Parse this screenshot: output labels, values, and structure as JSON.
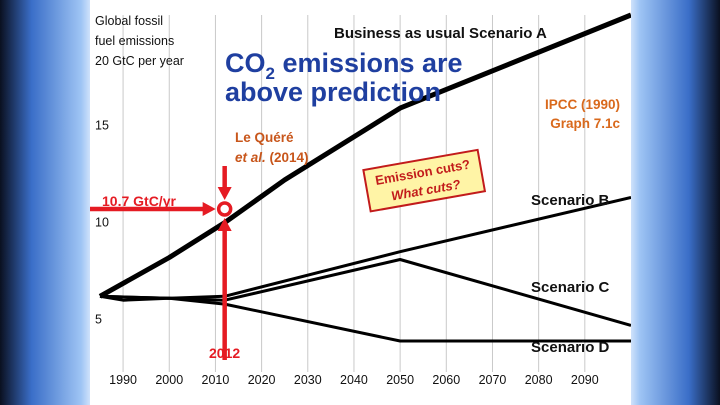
{
  "slide": {
    "headline_line1": "CO",
    "headline_sub": "2",
    "headline_line1_rest": " emissions are",
    "headline_line2": "above prediction",
    "headline_color": "#1f3fa0"
  },
  "chart_data": {
    "type": "line",
    "ylabel_lines": [
      "Global fossil",
      "fuel emissions",
      "20 GtC per year"
    ],
    "y_ticks": [
      5,
      10,
      15
    ],
    "x_ticks": [
      1990,
      2000,
      2010,
      2020,
      2030,
      2040,
      2050,
      2060,
      2070,
      2080,
      2090
    ],
    "xlim": [
      1985,
      2100
    ],
    "ylim": [
      2.3,
      20.7
    ],
    "series": [
      {
        "name": "Business as usual Scenario A",
        "x": [
          1985,
          2000,
          2012,
          2025,
          2050,
          2100
        ],
        "y": [
          6.2,
          8.2,
          10.0,
          12.2,
          15.9,
          20.7
        ]
      },
      {
        "name": "Scenario B",
        "x": [
          1985,
          2000,
          2012,
          2050,
          2100
        ],
        "y": [
          6.2,
          6.1,
          6.2,
          8.5,
          11.3
        ]
      },
      {
        "name": "Scenario C",
        "x": [
          1985,
          2000,
          2012,
          2050,
          2100
        ],
        "y": [
          6.2,
          6.1,
          6.0,
          8.1,
          4.7
        ]
      },
      {
        "name": "Scenario D",
        "x": [
          1985,
          1990,
          2000,
          2012,
          2050,
          2100
        ],
        "y": [
          6.2,
          6.0,
          6.1,
          5.8,
          3.9,
          3.9
        ]
      }
    ],
    "series_labels": [
      "Business as usual Scenario A",
      "Scenario B",
      "Scenario C",
      "Scenario D"
    ],
    "annotations": {
      "source_line1": "IPCC (1990)",
      "source_line2": "Graph 7.1c",
      "source_color": "#d9691c",
      "citation_name": "Le Quéré",
      "citation_etal": "et al.",
      "citation_year": " (2014)",
      "citation_color": "#c8561b",
      "value_label": "10.7 GtC/yr",
      "year_label": "2012",
      "arrow_color": "#e51b23",
      "observed_point": {
        "x": 2012,
        "y": 10.7
      },
      "callout_line1": "Emission cuts?",
      "callout_line2": "What cuts?",
      "callout_fill": "#fff4a6",
      "callout_border": "#c21b1b"
    }
  }
}
